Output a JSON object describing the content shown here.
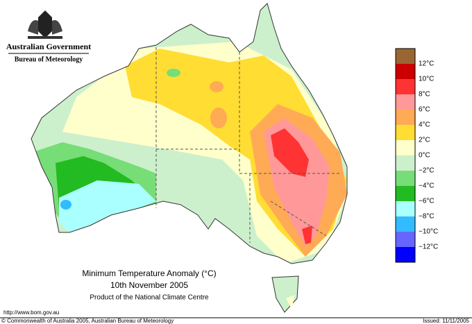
{
  "header": {
    "government": "Australian Government",
    "agency": "Bureau of Meteorology"
  },
  "legend": {
    "labels": [
      "12°C",
      "10°C",
      "8°C",
      "6°C",
      "4°C",
      "2°C",
      "0°C",
      "−2°C",
      "−4°C",
      "−6°C",
      "−8°C",
      "−10°C",
      "−12°C"
    ],
    "colors": [
      "#996633",
      "#cc0000",
      "#ff3333",
      "#ff9999",
      "#ffaa55",
      "#ffdd33",
      "#ffffcc",
      "#ccf0cc",
      "#77dd77",
      "#22bb22",
      "#aaffff",
      "#33bbff",
      "#6666ff",
      "#0000ff"
    ]
  },
  "title": {
    "line1": "Minimum Temperature Anomaly (°C)",
    "line2": "10th November 2005",
    "line3": "Product of the National Climate Centre"
  },
  "footer": {
    "url": "http://www.bom.gov.au",
    "copyright": "© Commonwealth of Australia 2005, Australian Bureau of Meteorology",
    "issued": "Issued: 11/11/2005"
  }
}
